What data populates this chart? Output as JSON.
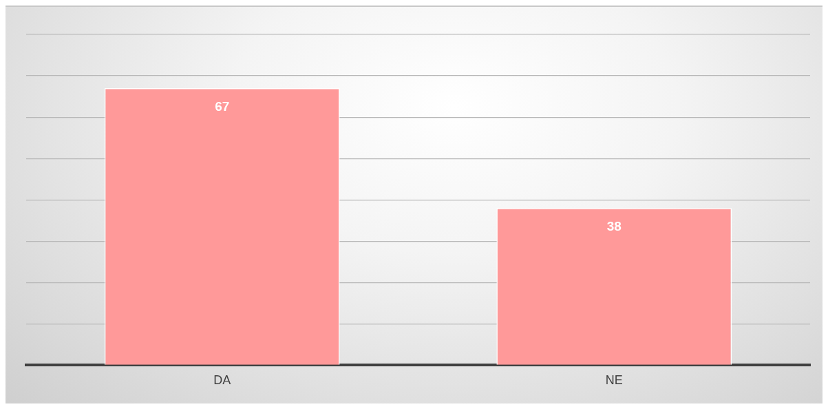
{
  "chart_data": {
    "type": "bar",
    "categories": [
      "DA",
      "NE"
    ],
    "values": [
      67,
      38
    ],
    "color": "#ff9999",
    "grid": "y",
    "tick_labels": "x",
    "data_labels": true,
    "legend": false
  }
}
